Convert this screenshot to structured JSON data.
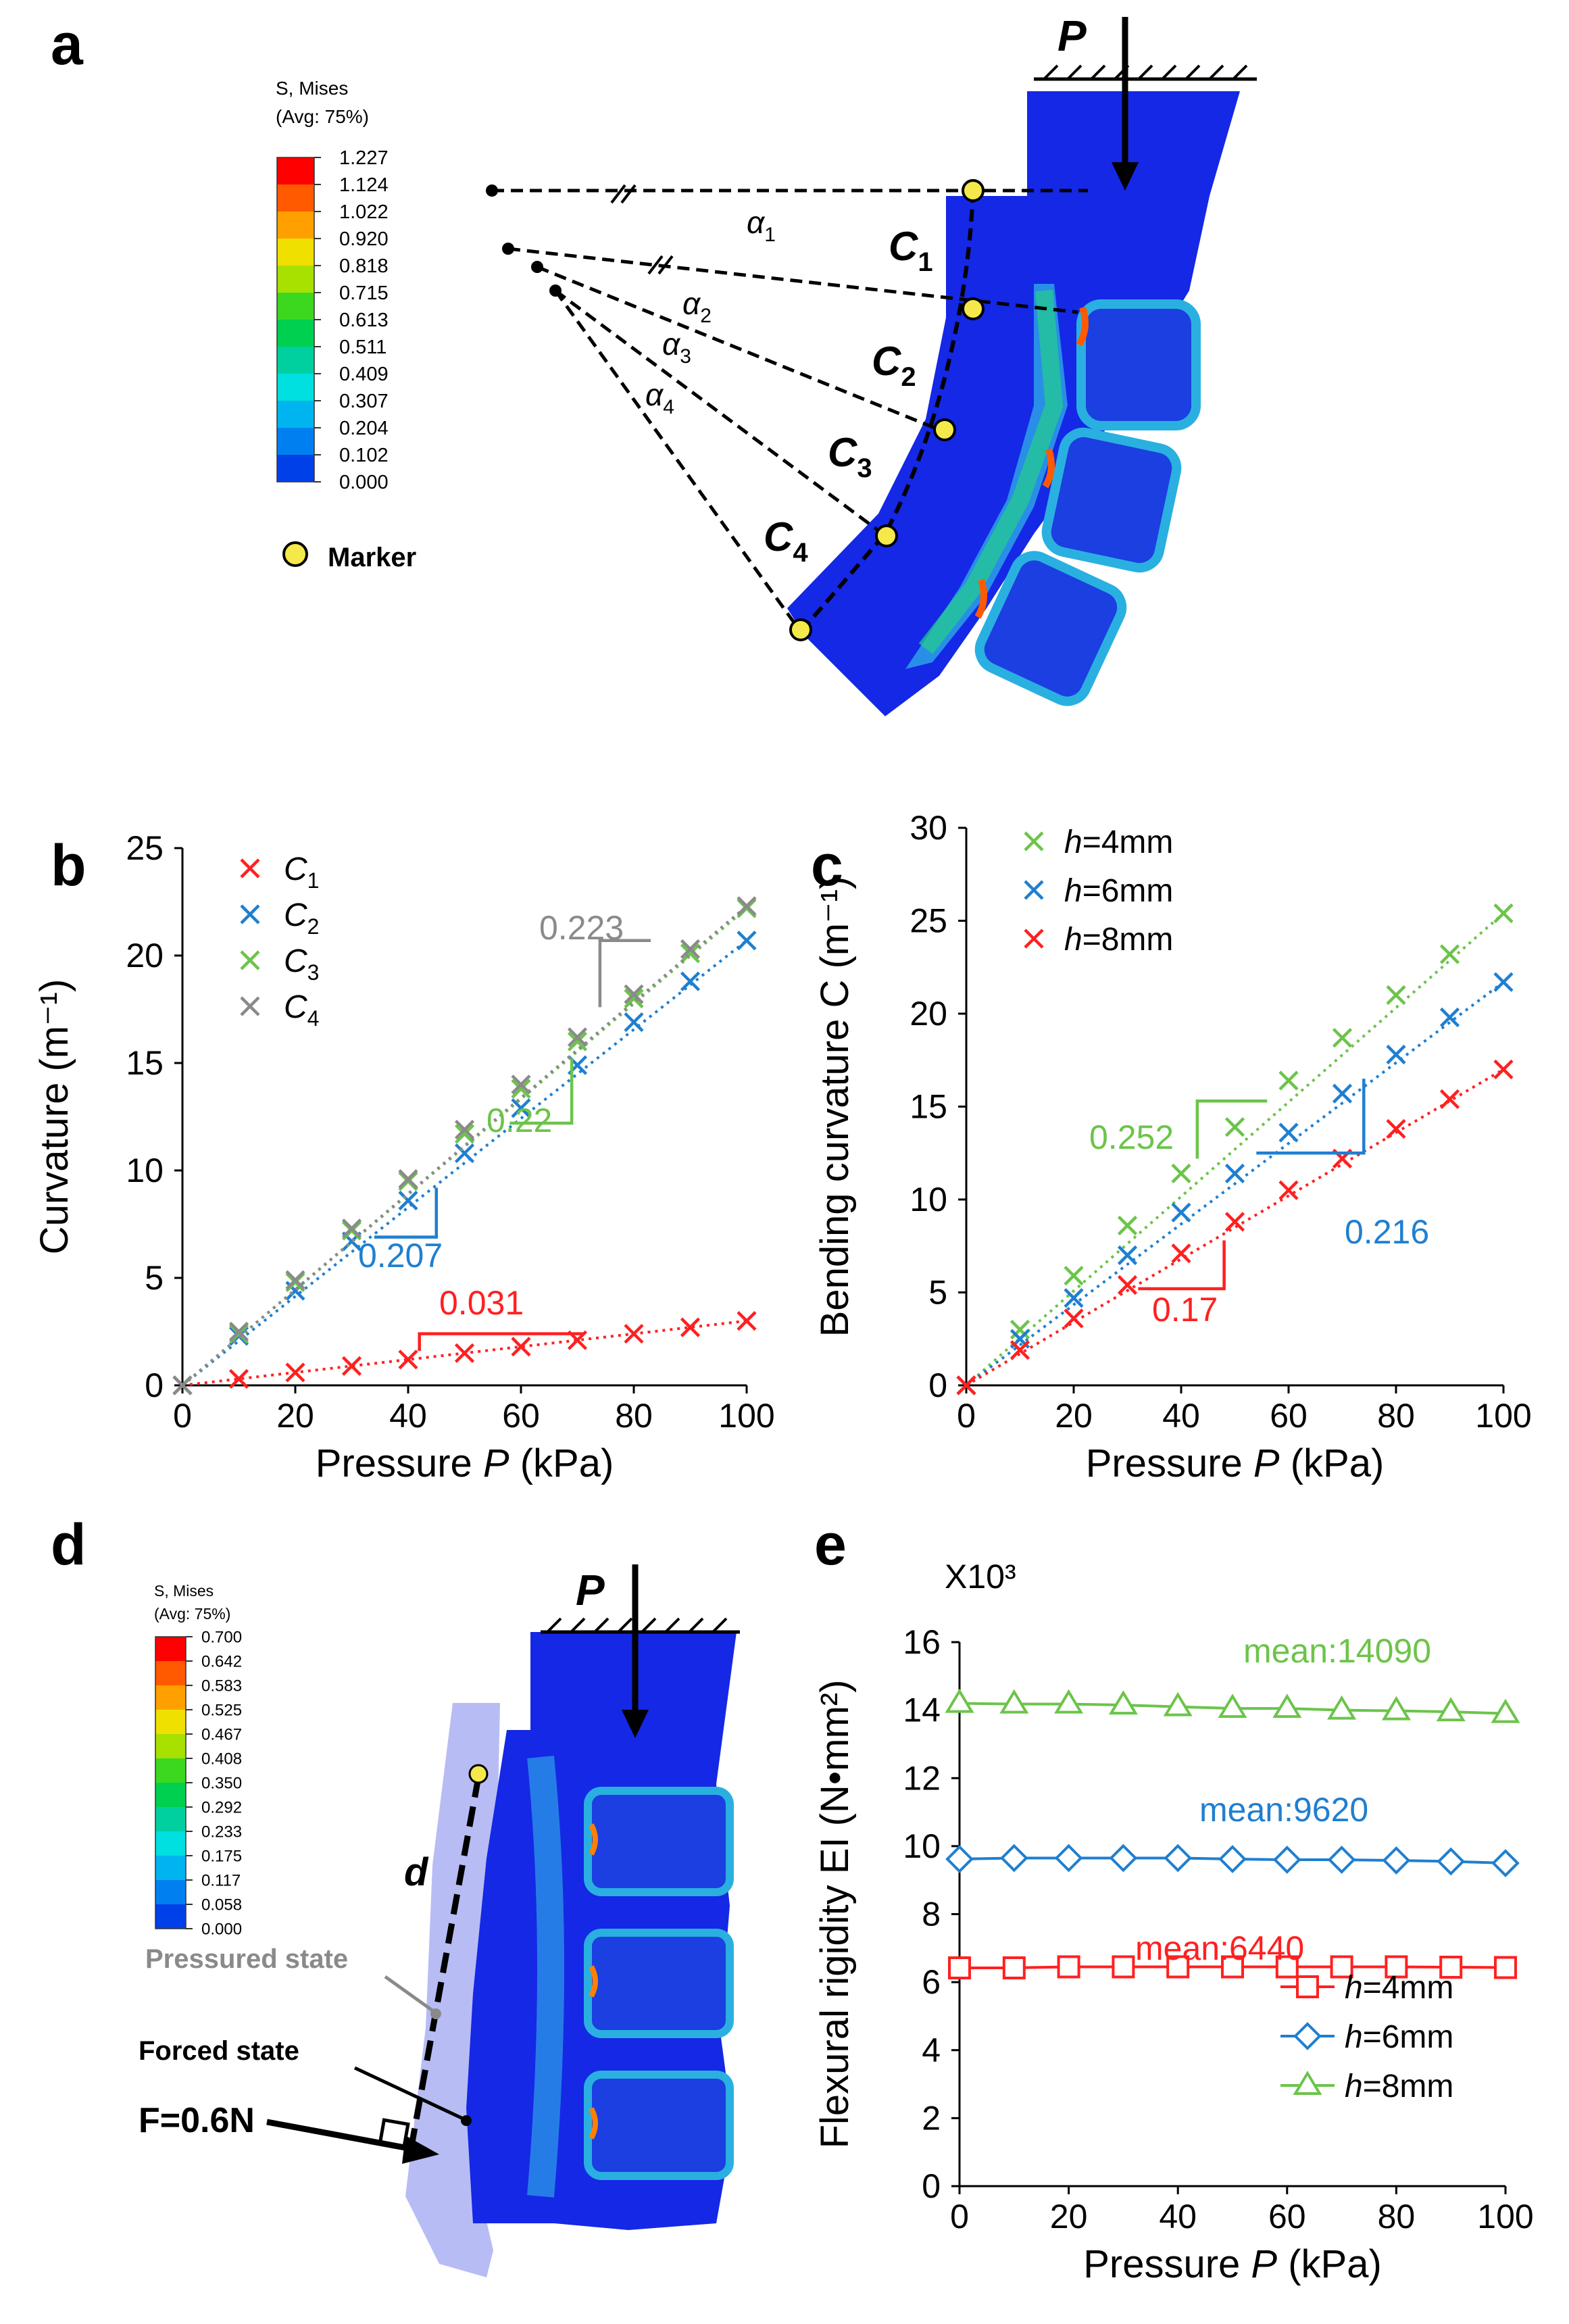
{
  "panels": {
    "a": {
      "label": "a",
      "legend_title_1": "S, Mises",
      "legend_title_2": "(Avg: 75%)",
      "colorbar_values": [
        "1.227",
        "1.124",
        "1.022",
        "0.920",
        "0.818",
        "0.715",
        "0.613",
        "0.511",
        "0.409",
        "0.307",
        "0.204",
        "0.102",
        "0.000"
      ],
      "colorbar_colors": [
        "#ff0000",
        "#ff5a00",
        "#ffa000",
        "#f0e000",
        "#a8e000",
        "#3cd820",
        "#00d050",
        "#00d0a0",
        "#00e0e0",
        "#00b4f0",
        "#0080f0",
        "#0040e8"
      ],
      "marker_label": "Marker",
      "load_label": "P",
      "angle_labels": [
        {
          "sym": "α",
          "sub": "1"
        },
        {
          "sym": "α",
          "sub": "2"
        },
        {
          "sym": "α",
          "sub": "3"
        },
        {
          "sym": "α",
          "sub": "4"
        }
      ],
      "curv_labels": [
        {
          "sym": "C",
          "sub": "1"
        },
        {
          "sym": "C",
          "sub": "2"
        },
        {
          "sym": "C",
          "sub": "3"
        },
        {
          "sym": "C",
          "sub": "4"
        }
      ]
    },
    "d": {
      "label": "d",
      "legend_title_1": "S, Mises",
      "legend_title_2": "(Avg: 75%)",
      "colorbar_values": [
        "0.700",
        "0.642",
        "0.583",
        "0.525",
        "0.467",
        "0.408",
        "0.350",
        "0.292",
        "0.233",
        "0.175",
        "0.117",
        "0.058",
        "0.000"
      ],
      "load_label": "P",
      "disp_label": "d",
      "pressured_label": "Pressured state",
      "forced_label": "Forced state",
      "force_label": "F=0.6N"
    }
  },
  "chart_data": [
    {
      "panel": "b",
      "type": "scatter",
      "xlabel": "Pressure P (kPa)",
      "ylabel": "Curvature (m⁻¹)",
      "xlim": [
        0,
        100
      ],
      "ylim": [
        0,
        25
      ],
      "xticks": [
        0,
        20,
        40,
        60,
        80,
        100
      ],
      "yticks": [
        0,
        5,
        10,
        15,
        20,
        25
      ],
      "x": [
        0,
        10,
        20,
        30,
        40,
        50,
        60,
        70,
        80,
        90,
        100
      ],
      "series": [
        {
          "name": "C1",
          "sym": "C",
          "sub": "1",
          "color": "#ff2020",
          "values": [
            0,
            0.3,
            0.6,
            0.9,
            1.2,
            1.5,
            1.8,
            2.1,
            2.4,
            2.7,
            3.0
          ]
        },
        {
          "name": "C2",
          "sym": "C",
          "sub": "2",
          "color": "#1f7fd0",
          "values": [
            0,
            2.3,
            4.4,
            6.7,
            8.6,
            10.8,
            12.9,
            14.9,
            16.9,
            18.8,
            20.7
          ]
        },
        {
          "name": "C3",
          "sym": "C",
          "sub": "3",
          "color": "#6cc44a",
          "values": [
            0,
            2.4,
            4.8,
            7.2,
            9.5,
            11.7,
            13.8,
            16.0,
            18.0,
            20.1,
            22.2
          ]
        },
        {
          "name": "C4",
          "sym": "C",
          "sub": "4",
          "color": "#8a8a8a",
          "values": [
            0,
            2.5,
            4.9,
            7.3,
            9.6,
            11.9,
            14.0,
            16.2,
            18.2,
            20.3,
            22.3
          ]
        }
      ],
      "slopes": [
        {
          "text": "0.223",
          "color": "#8a8a8a"
        },
        {
          "text": "0.22",
          "color": "#6cc44a"
        },
        {
          "text": "0.207",
          "color": "#1f7fd0"
        },
        {
          "text": "0.031",
          "color": "#ff2020"
        }
      ]
    },
    {
      "panel": "c",
      "type": "scatter",
      "xlabel": "Pressure P (kPa)",
      "ylabel": "Bending curvature C (m⁻¹)",
      "xlim": [
        0,
        100
      ],
      "ylim": [
        0,
        30
      ],
      "xticks": [
        0,
        20,
        40,
        60,
        80,
        100
      ],
      "yticks": [
        0,
        5,
        10,
        15,
        20,
        25,
        30
      ],
      "x": [
        0,
        10,
        20,
        30,
        40,
        50,
        60,
        70,
        80,
        90,
        100
      ],
      "series": [
        {
          "name": "h=4mm",
          "var": "h",
          "rest": "=4mm",
          "color": "#6cc44a",
          "values": [
            0,
            3.0,
            5.9,
            8.6,
            11.4,
            13.9,
            16.4,
            18.7,
            21.0,
            23.2,
            25.4
          ]
        },
        {
          "name": "h=6mm",
          "var": "h",
          "rest": "=6mm",
          "color": "#1f7fd0",
          "values": [
            0,
            2.5,
            4.7,
            7.0,
            9.3,
            11.4,
            13.6,
            15.7,
            17.8,
            19.8,
            21.7
          ]
        },
        {
          "name": "h=8mm",
          "var": "h",
          "rest": "=8mm",
          "color": "#ff2020",
          "values": [
            0,
            1.9,
            3.6,
            5.4,
            7.1,
            8.8,
            10.5,
            12.2,
            13.8,
            15.4,
            17.0
          ]
        }
      ],
      "slopes": [
        {
          "text": "0.252",
          "color": "#6cc44a"
        },
        {
          "text": "0.216",
          "color": "#1f7fd0"
        },
        {
          "text": "0.17",
          "color": "#ff2020"
        }
      ]
    },
    {
      "panel": "e",
      "type": "line",
      "multiplier_label": "X10³",
      "xlabel": "Pressure P (kPa)",
      "ylabel": "Flexural rigidity EI (N•mm²)",
      "xlim": [
        0,
        100
      ],
      "ylim": [
        0,
        16
      ],
      "xticks": [
        0,
        20,
        40,
        60,
        80,
        100
      ],
      "yticks": [
        0,
        2,
        4,
        6,
        8,
        10,
        12,
        14,
        16
      ],
      "x": [
        0,
        10,
        20,
        30,
        40,
        50,
        60,
        70,
        80,
        90,
        100
      ],
      "series": [
        {
          "name": "h=4mm",
          "var": "h",
          "rest": "=4mm",
          "marker": "square",
          "color": "#ff2020",
          "values": [
            6.42,
            6.42,
            6.45,
            6.45,
            6.45,
            6.45,
            6.45,
            6.45,
            6.45,
            6.44,
            6.43
          ]
        },
        {
          "name": "h=6mm",
          "var": "h",
          "rest": "=6mm",
          "marker": "diamond",
          "color": "#1f7fd0",
          "values": [
            9.62,
            9.65,
            9.65,
            9.65,
            9.65,
            9.62,
            9.6,
            9.6,
            9.58,
            9.55,
            9.5
          ]
        },
        {
          "name": "h=8mm",
          "var": "h",
          "rest": "=8mm",
          "marker": "triangle",
          "color": "#6cc44a",
          "values": [
            14.2,
            14.18,
            14.18,
            14.15,
            14.1,
            14.05,
            14.05,
            14.0,
            13.98,
            13.95,
            13.9
          ]
        }
      ],
      "annotations": [
        {
          "text": "mean:14090",
          "color": "#6cc44a"
        },
        {
          "text": "mean:9620",
          "color": "#1f7fd0"
        },
        {
          "text": "mean:6440",
          "color": "#ff2020"
        }
      ]
    }
  ]
}
